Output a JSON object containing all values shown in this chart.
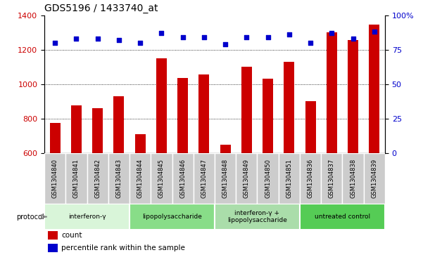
{
  "title": "GDS5196 / 1433740_at",
  "samples": [
    "GSM1304840",
    "GSM1304841",
    "GSM1304842",
    "GSM1304843",
    "GSM1304844",
    "GSM1304845",
    "GSM1304846",
    "GSM1304847",
    "GSM1304848",
    "GSM1304849",
    "GSM1304850",
    "GSM1304851",
    "GSM1304836",
    "GSM1304837",
    "GSM1304838",
    "GSM1304839"
  ],
  "counts": [
    775,
    875,
    860,
    930,
    710,
    1150,
    1035,
    1055,
    650,
    1100,
    1030,
    1130,
    900,
    1300,
    1255,
    1345
  ],
  "percentile_ranks": [
    80,
    83,
    83,
    82,
    80,
    87,
    84,
    84,
    79,
    84,
    84,
    86,
    80,
    87,
    83,
    88
  ],
  "ylim_left": [
    600,
    1400
  ],
  "ylim_right": [
    0,
    100
  ],
  "yticks_left": [
    600,
    800,
    1000,
    1200,
    1400
  ],
  "yticks_right": [
    0,
    25,
    50,
    75,
    100
  ],
  "bar_color": "#cc0000",
  "dot_color": "#0000cc",
  "grid_color": "#000000",
  "protocols": [
    {
      "label": "interferon-γ",
      "start": 0,
      "end": 4,
      "color": "#d9f5d9"
    },
    {
      "label": "lipopolysaccharide",
      "start": 4,
      "end": 8,
      "color": "#88dd88"
    },
    {
      "label": "interferon-γ +\nlipopolysaccharide",
      "start": 8,
      "end": 12,
      "color": "#aaddaa"
    },
    {
      "label": "untreated control",
      "start": 12,
      "end": 16,
      "color": "#55cc55"
    }
  ],
  "legend_count_label": "count",
  "legend_percentile_label": "percentile rank within the sample",
  "bar_width": 0.5,
  "label_bg_color": "#cccccc",
  "label_fontsize": 6.0,
  "title_fontsize": 10
}
